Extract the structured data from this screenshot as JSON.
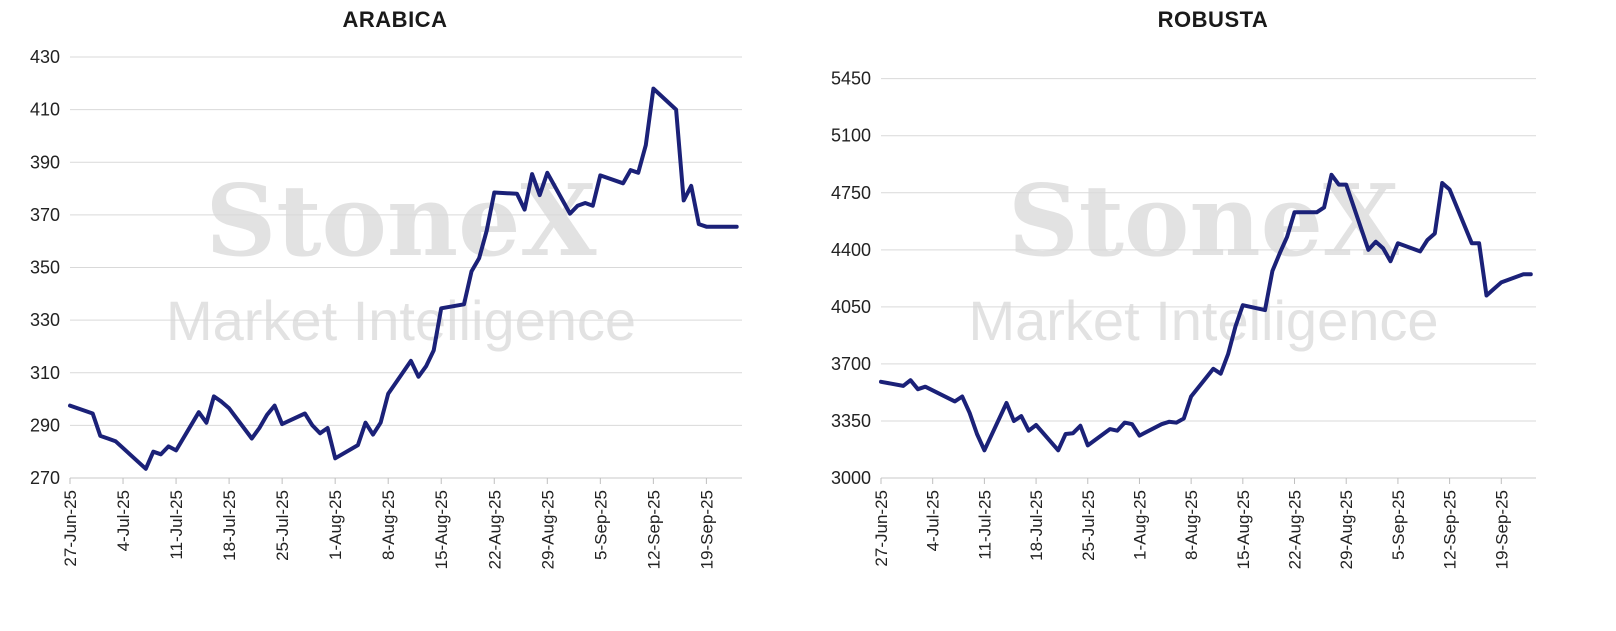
{
  "watermark": {
    "brand": "StoneX",
    "tagline": "Market Intelligence"
  },
  "chart_data": [
    {
      "type": "line",
      "title": "ARABICA",
      "xlabel": "",
      "ylabel": "",
      "ylim": [
        270,
        430
      ],
      "yticks": [
        270,
        290,
        310,
        330,
        350,
        370,
        390,
        410,
        430
      ],
      "xtick_labels": [
        "27-Jun-25",
        "4-Jul-25",
        "11-Jul-25",
        "18-Jul-25",
        "25-Jul-25",
        "1-Aug-25",
        "8-Aug-25",
        "15-Aug-25",
        "22-Aug-25",
        "29-Aug-25",
        "5-Sep-25",
        "12-Sep-25",
        "19-Sep-25"
      ],
      "grid": true,
      "legend": false,
      "line_color": "#1b2178",
      "series": [
        {
          "x": [
            "2025-06-27",
            "2025-06-30",
            "2025-07-01",
            "2025-07-02",
            "2025-07-03",
            "2025-07-07",
            "2025-07-08",
            "2025-07-09",
            "2025-07-10",
            "2025-07-11",
            "2025-07-14",
            "2025-07-15",
            "2025-07-16",
            "2025-07-17",
            "2025-07-18",
            "2025-07-21",
            "2025-07-22",
            "2025-07-23",
            "2025-07-24",
            "2025-07-25",
            "2025-07-28",
            "2025-07-29",
            "2025-07-30",
            "2025-07-31",
            "2025-08-01",
            "2025-08-04",
            "2025-08-05",
            "2025-08-06",
            "2025-08-07",
            "2025-08-08",
            "2025-08-11",
            "2025-08-12",
            "2025-08-13",
            "2025-08-14",
            "2025-08-15",
            "2025-08-18",
            "2025-08-19",
            "2025-08-20",
            "2025-08-21",
            "2025-08-22",
            "2025-08-25",
            "2025-08-26",
            "2025-08-27",
            "2025-08-28",
            "2025-08-29",
            "2025-09-01",
            "2025-09-02",
            "2025-09-03",
            "2025-09-04",
            "2025-09-05",
            "2025-09-08",
            "2025-09-09",
            "2025-09-10",
            "2025-09-11",
            "2025-09-12",
            "2025-09-15",
            "2025-09-16",
            "2025-09-17",
            "2025-09-18",
            "2025-09-19",
            "2025-09-22",
            "2025-09-23"
          ],
          "values": [
            297.5,
            294.5,
            286,
            285,
            284,
            273.5,
            280,
            279,
            282,
            280.5,
            295,
            291,
            301,
            299,
            296.5,
            285,
            289,
            294,
            297.5,
            290.5,
            294.5,
            290,
            287,
            289,
            277.5,
            282.5,
            291,
            286.5,
            291,
            302,
            314.5,
            308.5,
            312.5,
            318.5,
            334.5,
            336,
            348.5,
            353.5,
            364,
            378.5,
            378,
            372,
            385.5,
            377.5,
            386,
            370.5,
            373.5,
            374.5,
            373.5,
            385,
            382,
            387,
            386,
            396.5,
            418,
            410,
            375.5,
            381,
            366.5,
            365.5,
            365.5,
            365.5
          ]
        }
      ]
    },
    {
      "type": "line",
      "title": "ROBUSTA",
      "xlabel": "",
      "ylabel": "",
      "ylim": [
        3000,
        5675
      ],
      "yticks": [
        3000,
        3350,
        3700,
        4050,
        4400,
        4750,
        5100,
        5450
      ],
      "xtick_labels": [
        "27-Jun-25",
        "4-Jul-25",
        "11-Jul-25",
        "18-Jul-25",
        "25-Jul-25",
        "1-Aug-25",
        "8-Aug-25",
        "15-Aug-25",
        "22-Aug-25",
        "29-Aug-25",
        "5-Sep-25",
        "12-Sep-25",
        "19-Sep-25"
      ],
      "grid": true,
      "legend": false,
      "line_color": "#1b2178",
      "series": [
        {
          "x": [
            "2025-06-27",
            "2025-06-30",
            "2025-07-01",
            "2025-07-02",
            "2025-07-03",
            "2025-07-07",
            "2025-07-08",
            "2025-07-09",
            "2025-07-10",
            "2025-07-11",
            "2025-07-14",
            "2025-07-15",
            "2025-07-16",
            "2025-07-17",
            "2025-07-18",
            "2025-07-21",
            "2025-07-22",
            "2025-07-23",
            "2025-07-24",
            "2025-07-25",
            "2025-07-28",
            "2025-07-29",
            "2025-07-30",
            "2025-07-31",
            "2025-08-01",
            "2025-08-04",
            "2025-08-05",
            "2025-08-06",
            "2025-08-07",
            "2025-08-08",
            "2025-08-11",
            "2025-08-12",
            "2025-08-13",
            "2025-08-14",
            "2025-08-15",
            "2025-08-18",
            "2025-08-19",
            "2025-08-20",
            "2025-08-21",
            "2025-08-22",
            "2025-08-25",
            "2025-08-26",
            "2025-08-27",
            "2025-08-28",
            "2025-08-29",
            "2025-09-01",
            "2025-09-02",
            "2025-09-03",
            "2025-09-04",
            "2025-09-05",
            "2025-09-08",
            "2025-09-09",
            "2025-09-10",
            "2025-09-11",
            "2025-09-12",
            "2025-09-15",
            "2025-09-16",
            "2025-09-17",
            "2025-09-18",
            "2025-09-19",
            "2025-09-22",
            "2025-09-23"
          ],
          "values": [
            3590,
            3565,
            3600,
            3545,
            3560,
            3470,
            3500,
            3400,
            3270,
            3170,
            3460,
            3350,
            3380,
            3290,
            3325,
            3170,
            3270,
            3275,
            3320,
            3200,
            3300,
            3290,
            3340,
            3330,
            3260,
            3330,
            3345,
            3340,
            3365,
            3500,
            3670,
            3640,
            3760,
            3930,
            4060,
            4030,
            4270,
            4380,
            4480,
            4630,
            4630,
            4660,
            4860,
            4800,
            4800,
            4400,
            4450,
            4410,
            4330,
            4440,
            4390,
            4460,
            4500,
            4810,
            4770,
            4440,
            4440,
            4120,
            4160,
            4200,
            4250,
            4250
          ]
        }
      ]
    }
  ]
}
